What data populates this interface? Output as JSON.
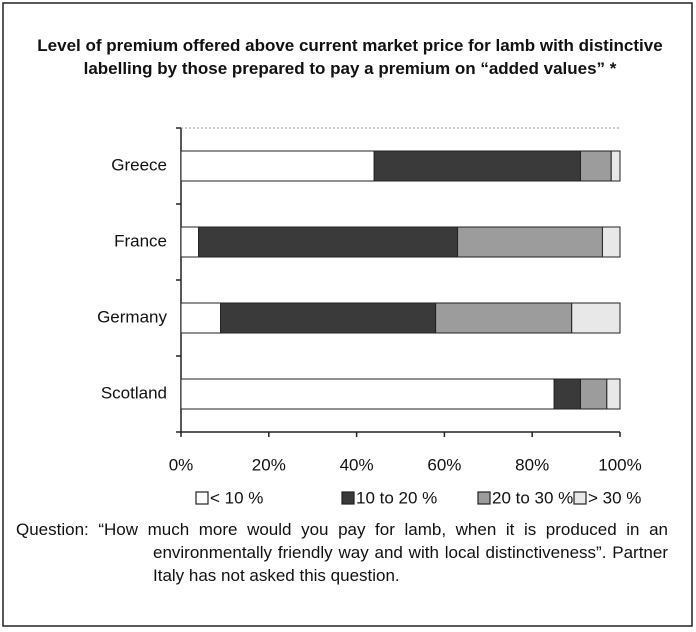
{
  "chart_data": {
    "type": "stacked_bar_horizontal",
    "title": "Level of premium offered above current market price for lamb with distinctive labelling by those prepared to pay a premium on “added values” *",
    "categories": [
      "Greece",
      "France",
      "Germany",
      "Scotland"
    ],
    "series": [
      {
        "name": "< 10 %",
        "color": "#ffffff",
        "values": [
          44,
          4,
          9,
          85
        ]
      },
      {
        "name": "10 to 20 %",
        "color": "#3a3a3a",
        "values": [
          47,
          59,
          49,
          6
        ]
      },
      {
        "name": "20 to 30 %",
        "color": "#9c9c9c",
        "values": [
          7,
          33,
          31,
          6
        ]
      },
      {
        "name": "> 30 %",
        "color": "#e8e8e8",
        "values": [
          2,
          4,
          11,
          3
        ]
      }
    ],
    "xlim": [
      0,
      100
    ],
    "xticks": [
      {
        "value": 0,
        "label": "0%"
      },
      {
        "value": 20,
        "label": "20%"
      },
      {
        "value": 40,
        "label": "40%"
      },
      {
        "value": 60,
        "label": "60%"
      },
      {
        "value": 80,
        "label": "80%"
      },
      {
        "value": 100,
        "label": "100%"
      }
    ],
    "legend": "bottom",
    "note": "Question: “How much more would you pay for lamb, when it is produced in an environmentally friendly way and with local distinctiveness”. Partner Italy has not asked this question."
  }
}
